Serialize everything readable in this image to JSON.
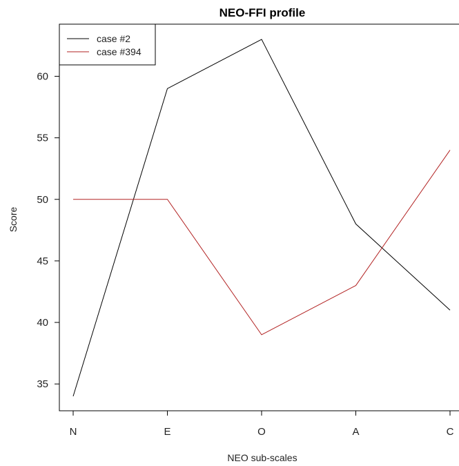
{
  "chart_data": {
    "type": "line",
    "title": "NEO-FFI profile",
    "xlabel": "NEO sub-scales",
    "ylabel": "Score",
    "categories": [
      "N",
      "E",
      "O",
      "A",
      "C"
    ],
    "series": [
      {
        "name": "case #2",
        "color": "#000000",
        "values": [
          34,
          59,
          63,
          48,
          41
        ]
      },
      {
        "name": "case #394",
        "color": "#b22222",
        "values": [
          50,
          50,
          39,
          43,
          54
        ]
      }
    ],
    "yticks": [
      35,
      40,
      45,
      50,
      55,
      60
    ],
    "ylim": [
      33,
      64
    ],
    "grid": false,
    "legend_position": "top-left"
  }
}
